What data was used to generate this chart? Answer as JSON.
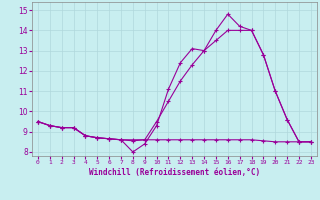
{
  "xlabel": "Windchill (Refroidissement éolien,°C)",
  "bg_color": "#c8eef0",
  "grid_color": "#b0d8dc",
  "line_color": "#990099",
  "xlim": [
    0,
    23
  ],
  "ylim": [
    7.8,
    15.4
  ],
  "xticks": [
    0,
    1,
    2,
    3,
    4,
    5,
    6,
    7,
    8,
    9,
    10,
    11,
    12,
    13,
    14,
    15,
    16,
    17,
    18,
    19,
    20,
    21,
    22,
    23
  ],
  "yticks": [
    8,
    9,
    10,
    11,
    12,
    13,
    14,
    15
  ],
  "line1_x": [
    0,
    1,
    2,
    3,
    4,
    5,
    6,
    7,
    8,
    9,
    10,
    11,
    12,
    13,
    14,
    15,
    16,
    17,
    18,
    19,
    20,
    21,
    22,
    23
  ],
  "line1_y": [
    9.5,
    9.3,
    9.2,
    9.2,
    8.8,
    8.7,
    8.65,
    8.6,
    8.55,
    8.6,
    8.6,
    8.6,
    8.6,
    8.6,
    8.6,
    8.6,
    8.6,
    8.6,
    8.6,
    8.55,
    8.5,
    8.5,
    8.5,
    8.5
  ],
  "line2_x": [
    0,
    1,
    2,
    3,
    4,
    5,
    6,
    7,
    8,
    9,
    10,
    11,
    12,
    13,
    14,
    15,
    16,
    17,
    18,
    19,
    20,
    21,
    22,
    23
  ],
  "line2_y": [
    9.5,
    9.3,
    9.2,
    9.2,
    8.8,
    8.7,
    8.65,
    8.6,
    8.0,
    8.4,
    9.3,
    11.1,
    12.4,
    13.1,
    13.0,
    14.0,
    14.8,
    14.2,
    14.0,
    12.8,
    11.0,
    9.6,
    8.5,
    8.5
  ],
  "line3_x": [
    0,
    1,
    2,
    3,
    4,
    5,
    6,
    7,
    8,
    9,
    10,
    11,
    12,
    13,
    14,
    15,
    16,
    17,
    18,
    19,
    20,
    21,
    22,
    23
  ],
  "line3_y": [
    9.5,
    9.3,
    9.2,
    9.2,
    8.8,
    8.7,
    8.65,
    8.6,
    8.6,
    8.6,
    9.5,
    10.5,
    11.5,
    12.3,
    13.0,
    13.5,
    14.0,
    14.0,
    14.0,
    12.8,
    11.0,
    9.6,
    8.5,
    8.5
  ]
}
